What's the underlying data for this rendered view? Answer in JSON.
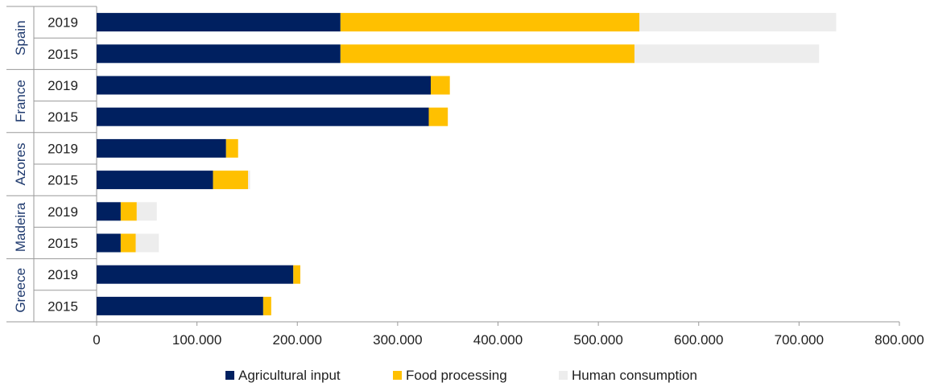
{
  "chart_data": {
    "type": "bar",
    "orientation": "horizontal",
    "stacked": true,
    "title": "",
    "xlabel": "",
    "ylabel": "",
    "xlim": [
      0,
      800000
    ],
    "x_ticks": [
      0,
      100000,
      200000,
      300000,
      400000,
      500000,
      600000,
      700000,
      800000
    ],
    "x_tick_labels": [
      "0",
      "100.000",
      "200.000",
      "300.000",
      "400.000",
      "500.000",
      "600.000",
      "700.000",
      "800.000"
    ],
    "groups": [
      {
        "name": "Spain",
        "years": [
          "2019",
          "2015"
        ]
      },
      {
        "name": "France",
        "years": [
          "2019",
          "2015"
        ]
      },
      {
        "name": "Azores",
        "years": [
          "2019",
          "2015"
        ]
      },
      {
        "name": "Madeira",
        "years": [
          "2019",
          "2015"
        ]
      },
      {
        "name": "Greece",
        "years": [
          "2019",
          "2015"
        ]
      }
    ],
    "series": [
      {
        "name": "Agricultural input",
        "color": "#002060",
        "values": [
          243000,
          243000,
          333000,
          331000,
          129000,
          116000,
          24000,
          24000,
          196000,
          166000
        ]
      },
      {
        "name": "Food processing",
        "color": "#FFC000",
        "values": [
          298000,
          293000,
          19000,
          19000,
          12000,
          35000,
          16000,
          15000,
          7000,
          8000
        ]
      },
      {
        "name": "Human consumption",
        "color": "#EDEDED",
        "values": [
          196000,
          184000,
          0,
          0,
          0,
          2000,
          20000,
          23000,
          0,
          0
        ]
      }
    ],
    "grid": false,
    "legend_position": "bottom"
  }
}
